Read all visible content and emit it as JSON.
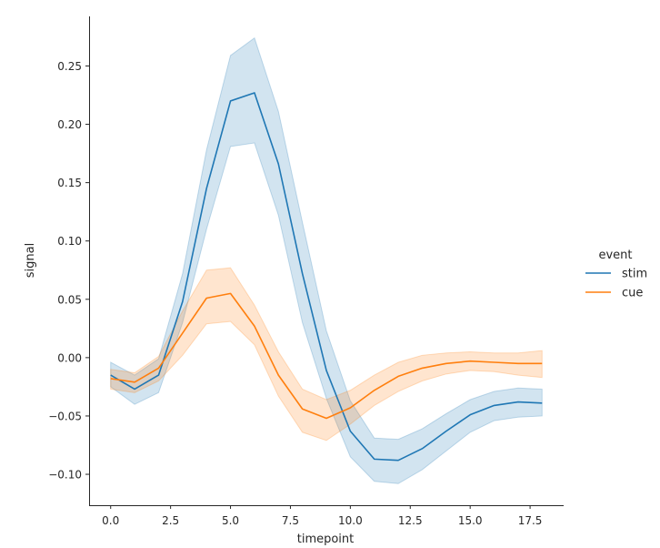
{
  "chart_data": {
    "type": "line",
    "title": "",
    "xlabel": "timepoint",
    "ylabel": "signal",
    "xlim": [
      -0.9,
      18.9
    ],
    "ylim": [
      -0.1265,
      0.2925
    ],
    "xticks": [
      0.0,
      2.5,
      5.0,
      7.5,
      10.0,
      12.5,
      15.0,
      17.5
    ],
    "xtick_labels": [
      "0.0",
      "2.5",
      "5.0",
      "7.5",
      "10.0",
      "12.5",
      "15.0",
      "17.5"
    ],
    "yticks": [
      -0.1,
      -0.05,
      0.0,
      0.05,
      0.1,
      0.15,
      0.2,
      0.25
    ],
    "ytick_labels": [
      "−0.10",
      "−0.05",
      "0.00",
      "0.05",
      "0.10",
      "0.15",
      "0.20",
      "0.25"
    ],
    "legend": {
      "title": "event",
      "position": "right"
    },
    "x": [
      0,
      1,
      2,
      3,
      4,
      5,
      6,
      7,
      8,
      9,
      10,
      11,
      12,
      13,
      14,
      15,
      16,
      17,
      18
    ],
    "series": [
      {
        "name": "stim",
        "color": "#1f77b4",
        "values": [
          -0.015,
          -0.027,
          -0.015,
          0.048,
          0.145,
          0.22,
          0.227,
          0.166,
          0.072,
          -0.011,
          -0.063,
          -0.087,
          -0.088,
          -0.078,
          -0.063,
          -0.049,
          -0.041,
          -0.038,
          -0.039
        ],
        "ci_low": [
          -0.025,
          -0.04,
          -0.03,
          0.03,
          0.11,
          0.181,
          0.184,
          0.122,
          0.03,
          -0.035,
          -0.085,
          -0.106,
          -0.108,
          -0.096,
          -0.08,
          -0.064,
          -0.054,
          -0.051,
          -0.05
        ],
        "ci_high": [
          -0.004,
          -0.015,
          -0.001,
          0.072,
          0.178,
          0.259,
          0.274,
          0.211,
          0.116,
          0.023,
          -0.037,
          -0.069,
          -0.07,
          -0.061,
          -0.048,
          -0.036,
          -0.029,
          -0.026,
          -0.027
        ]
      },
      {
        "name": "cue",
        "color": "#ff7f0e",
        "values": [
          -0.018,
          -0.021,
          -0.009,
          0.021,
          0.051,
          0.055,
          0.027,
          -0.015,
          -0.044,
          -0.052,
          -0.043,
          -0.028,
          -0.016,
          -0.009,
          -0.005,
          -0.003,
          -0.004,
          -0.005,
          -0.005
        ],
        "ci_low": [
          -0.027,
          -0.03,
          -0.02,
          0.002,
          0.029,
          0.031,
          0.011,
          -0.033,
          -0.064,
          -0.071,
          -0.057,
          -0.041,
          -0.029,
          -0.02,
          -0.014,
          -0.011,
          -0.012,
          -0.015,
          -0.017
        ],
        "ci_high": [
          -0.01,
          -0.013,
          0.001,
          0.04,
          0.075,
          0.077,
          0.045,
          0.005,
          -0.027,
          -0.036,
          -0.028,
          -0.015,
          -0.004,
          0.002,
          0.004,
          0.005,
          0.004,
          0.004,
          0.006
        ]
      }
    ]
  }
}
